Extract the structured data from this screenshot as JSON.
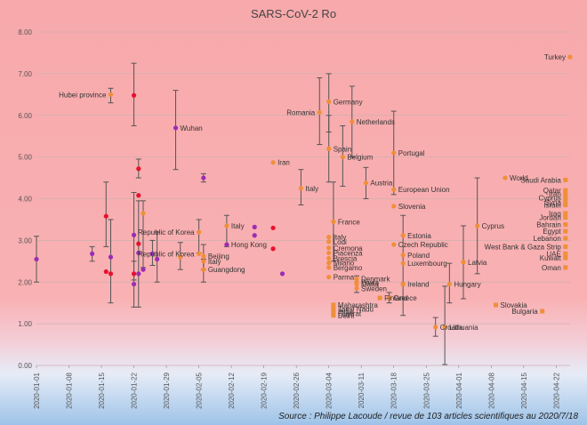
{
  "chart_data": {
    "type": "scatter",
    "title": "SARS-CoV-2 Ro",
    "source": "Source : Philippe Lacoude / revue de 103 articles scientifiques au 2020/7/18",
    "ylim": [
      0,
      8
    ],
    "y_ticks": [
      "0.00",
      "1.00",
      "2.00",
      "3.00",
      "4.00",
      "5.00",
      "6.00",
      "7.00",
      "8.00"
    ],
    "x_range": [
      "2020-01-01",
      "2020-04-25"
    ],
    "x_ticks": [
      "2020-01-01",
      "2020-01-08",
      "2020-01-15",
      "2020-01-22",
      "2020-01-29",
      "2020-02-05",
      "2020-02-12",
      "2020-02-19",
      "2020-02-26",
      "2020-03-04",
      "2020-03-11",
      "2020-03-18",
      "2020-03-25",
      "2020-04-01",
      "2020-04-08",
      "2020-04-15",
      "2020-04-22"
    ],
    "grid": true,
    "background": "gradient red (top) to blue (bottom)",
    "colors": {
      "red": "#e8112d",
      "purple": "#9b2cb5",
      "orange": "#ef8f3a",
      "error_bar": "#555555",
      "grid": "#cfb0b0"
    },
    "points": [
      {
        "date": "2020-01-01",
        "y": 2.55,
        "color": "purple",
        "marker": "circle",
        "lo": 2.0,
        "hi": 3.1
      },
      {
        "date": "2020-01-13",
        "y": 2.68,
        "color": "purple",
        "marker": "circle",
        "lo": 2.5,
        "hi": 2.85
      },
      {
        "date": "2020-01-16",
        "y": 3.58,
        "color": "red",
        "marker": "circle",
        "lo": 2.85,
        "hi": 4.4
      },
      {
        "date": "2020-01-16",
        "y": 2.25,
        "color": "red",
        "marker": "circle"
      },
      {
        "date": "2020-01-17",
        "y": 2.6,
        "color": "purple",
        "marker": "circle",
        "lo": 1.5,
        "hi": 3.5
      },
      {
        "date": "2020-01-17",
        "y": 2.2,
        "color": "red",
        "marker": "circle"
      },
      {
        "date": "2020-01-17",
        "y": 6.5,
        "color": "orange",
        "marker": "circle",
        "label": "Hubei province",
        "lo": 6.3,
        "hi": 6.65
      },
      {
        "date": "2020-01-22",
        "y": 6.48,
        "color": "red",
        "marker": "circle",
        "lo": 5.75,
        "hi": 7.25
      },
      {
        "date": "2020-01-22",
        "y": 3.13,
        "color": "purple",
        "marker": "circle",
        "lo": 2.05,
        "hi": 4.15
      },
      {
        "date": "2020-01-22",
        "y": 2.2,
        "color": "red",
        "marker": "circle"
      },
      {
        "date": "2020-01-22",
        "y": 1.95,
        "color": "purple",
        "marker": "circle",
        "lo": 1.4,
        "hi": 2.5
      },
      {
        "date": "2020-01-23",
        "y": 4.72,
        "color": "red",
        "marker": "circle",
        "lo": 4.5,
        "hi": 4.95
      },
      {
        "date": "2020-01-23",
        "y": 4.08,
        "color": "red",
        "marker": "circle"
      },
      {
        "date": "2020-01-23",
        "y": 2.92,
        "color": "red",
        "marker": "circle"
      },
      {
        "date": "2020-01-23",
        "y": 2.7,
        "color": "purple",
        "marker": "circle",
        "lo": 1.4,
        "hi": 3.95
      },
      {
        "date": "2020-01-23",
        "y": 2.2,
        "color": "purple",
        "marker": "circle"
      },
      {
        "date": "2020-01-24",
        "y": 3.65,
        "color": "orange",
        "marker": "circle",
        "lo": 2.35,
        "hi": 3.95
      },
      {
        "date": "2020-01-24",
        "y": 2.3,
        "color": "purple",
        "marker": "circle"
      },
      {
        "date": "2020-01-26",
        "y": 2.68,
        "color": "purple",
        "marker": "circle",
        "lo": 2.4,
        "hi": 3.0
      },
      {
        "date": "2020-01-27",
        "y": 2.55,
        "color": "purple",
        "marker": "circle",
        "lo": 2.0,
        "hi": 3.2
      },
      {
        "date": "2020-01-31",
        "y": 5.7,
        "color": "purple",
        "marker": "circle",
        "label": "Wuhan",
        "lo": 4.7,
        "hi": 6.6
      },
      {
        "date": "2020-02-01",
        "y": 2.6,
        "color": "orange",
        "marker": "circle",
        "lo": 2.3,
        "hi": 2.95
      },
      {
        "date": "2020-02-06",
        "y": 4.5,
        "color": "purple",
        "marker": "circle",
        "lo": 4.4,
        "hi": 4.6
      },
      {
        "date": "2020-02-05",
        "y": 3.2,
        "color": "orange",
        "marker": "circle",
        "label": "Republic of Korea",
        "lo": 2.7,
        "hi": 3.5
      },
      {
        "date": "2020-02-05",
        "y": 2.68,
        "color": "orange",
        "marker": "circle",
        "label": "Republic of Korea"
      },
      {
        "date": "2020-02-06",
        "y": 2.5,
        "color": "orange",
        "marker": "circle",
        "label": "Italy"
      },
      {
        "date": "2020-02-06",
        "y": 2.62,
        "color": "orange",
        "marker": "circle",
        "label": "Beijing",
        "lo": 2.3,
        "hi": 2.9
      },
      {
        "date": "2020-02-06",
        "y": 2.3,
        "color": "orange",
        "marker": "circle",
        "label": "Guangdong",
        "lo": 2.0,
        "hi": 2.55
      },
      {
        "date": "2020-02-11",
        "y": 3.35,
        "color": "orange",
        "marker": "circle",
        "label": "Italy",
        "lo": 2.85,
        "hi": 3.6
      },
      {
        "date": "2020-02-11",
        "y": 2.9,
        "color": "purple",
        "marker": "circle",
        "label": "Hong Kong"
      },
      {
        "date": "2020-02-17",
        "y": 3.32,
        "color": "purple",
        "marker": "circle"
      },
      {
        "date": "2020-02-17",
        "y": 3.12,
        "color": "purple",
        "marker": "circle"
      },
      {
        "date": "2020-02-21",
        "y": 3.3,
        "color": "red",
        "marker": "circle"
      },
      {
        "date": "2020-02-21",
        "y": 2.8,
        "color": "red",
        "marker": "circle"
      },
      {
        "date": "2020-02-21",
        "y": 4.87,
        "color": "orange",
        "marker": "circle",
        "label": "Iran"
      },
      {
        "date": "2020-02-23",
        "y": 2.2,
        "color": "purple",
        "marker": "circle"
      },
      {
        "date": "2020-02-27",
        "y": 4.25,
        "color": "orange",
        "marker": "circle",
        "label": "Italy",
        "lo": 3.85,
        "hi": 4.7
      },
      {
        "date": "2020-03-02",
        "y": 6.07,
        "color": "orange",
        "marker": "circle",
        "label": "Romania",
        "lo": 5.3,
        "hi": 6.9
      },
      {
        "date": "2020-03-04",
        "y": 6.33,
        "color": "orange",
        "marker": "circle",
        "label": "Germany",
        "lo": 5.6,
        "hi": 7.0
      },
      {
        "date": "2020-03-04",
        "y": 5.2,
        "color": "orange",
        "marker": "circle",
        "label": "Spain",
        "lo": 4.4,
        "hi": 6.0
      },
      {
        "date": "2020-03-05",
        "y": 3.45,
        "color": "orange",
        "marker": "circle",
        "label": "France",
        "lo": 2.5,
        "hi": 4.4
      },
      {
        "date": "2020-03-04",
        "y": 3.08,
        "color": "orange",
        "marker": "circle",
        "label": "Italy"
      },
      {
        "date": "2020-03-04",
        "y": 2.97,
        "color": "orange",
        "marker": "circle",
        "label": "Lodi"
      },
      {
        "date": "2020-03-04",
        "y": 2.82,
        "color": "orange",
        "marker": "circle",
        "label": "Cremona"
      },
      {
        "date": "2020-03-04",
        "y": 2.7,
        "color": "orange",
        "marker": "circle",
        "label": "Piacenza"
      },
      {
        "date": "2020-03-04",
        "y": 2.57,
        "color": "orange",
        "marker": "circle",
        "label": "Brescia"
      },
      {
        "date": "2020-03-04",
        "y": 2.46,
        "color": "orange",
        "marker": "circle",
        "label": "Milano"
      },
      {
        "date": "2020-03-04",
        "y": 2.35,
        "color": "orange",
        "marker": "circle",
        "label": "Bergamo"
      },
      {
        "date": "2020-03-04",
        "y": 2.12,
        "color": "orange",
        "marker": "circle",
        "label": "Parma"
      },
      {
        "date": "2020-03-07",
        "y": 5.0,
        "color": "orange",
        "marker": "circle",
        "label": "Belgium",
        "lo": 4.3,
        "hi": 5.75
      },
      {
        "date": "2020-03-09",
        "y": 5.85,
        "color": "orange",
        "marker": "circle",
        "label": "Netherlands",
        "lo": 5.0,
        "hi": 6.7
      },
      {
        "date": "2020-03-12",
        "y": 4.38,
        "color": "orange",
        "marker": "circle",
        "label": "Austria",
        "lo": 4.0,
        "hi": 4.75
      },
      {
        "date": "2020-03-10",
        "y": 2.0,
        "color": "orange",
        "marker": "circle",
        "label": "Pavia"
      },
      {
        "date": "2020-03-10",
        "y": 1.95,
        "color": "orange",
        "marker": "circle",
        "label": "Malta",
        "lo": 1.75,
        "hi": 2.15
      },
      {
        "date": "2020-03-10",
        "y": 1.85,
        "color": "orange",
        "marker": "circle",
        "label": "Sweden"
      },
      {
        "date": "2020-03-10",
        "y": 2.08,
        "color": "orange",
        "marker": "circle",
        "label": "Denmark"
      },
      {
        "date": "2020-03-05",
        "y": 1.45,
        "color": "orange",
        "marker": "square",
        "label": "Maharashtra"
      },
      {
        "date": "2020-03-05",
        "y": 1.35,
        "color": "orange",
        "marker": "square",
        "label": "Tamil Nadu"
      },
      {
        "date": "2020-03-05",
        "y": 1.3,
        "color": "orange",
        "marker": "square",
        "label": "India"
      },
      {
        "date": "2020-03-05",
        "y": 1.25,
        "color": "orange",
        "marker": "square",
        "label": "Gujarat"
      },
      {
        "date": "2020-03-05",
        "y": 1.2,
        "color": "orange",
        "marker": "square",
        "label": "Delhi"
      },
      {
        "date": "2020-03-15",
        "y": 1.62,
        "color": "orange",
        "marker": "square",
        "label": "Finland"
      },
      {
        "date": "2020-03-17",
        "y": 1.62,
        "color": "orange",
        "marker": "square",
        "label": "Greece",
        "lo": 1.5,
        "hi": 1.75
      },
      {
        "date": "2020-03-18",
        "y": 5.1,
        "color": "orange",
        "marker": "circle",
        "label": "Portugal",
        "lo": 4.1,
        "hi": 6.1
      },
      {
        "date": "2020-03-18",
        "y": 4.22,
        "color": "orange",
        "marker": "circle",
        "label": "European Union"
      },
      {
        "date": "2020-03-18",
        "y": 3.82,
        "color": "orange",
        "marker": "circle",
        "label": "Slovenia"
      },
      {
        "date": "2020-03-20",
        "y": 3.12,
        "color": "orange",
        "marker": "circle",
        "label": "Estonia"
      },
      {
        "date": "2020-03-18",
        "y": 2.9,
        "color": "orange",
        "marker": "circle",
        "label": "Czech Republic"
      },
      {
        "date": "2020-03-20",
        "y": 2.65,
        "color": "orange",
        "marker": "circle",
        "label": "Poland"
      },
      {
        "date": "2020-03-20",
        "y": 2.45,
        "color": "orange",
        "marker": "circle",
        "label": "Luxembourg",
        "lo": 1.2,
        "hi": 3.6
      },
      {
        "date": "2020-03-20",
        "y": 1.95,
        "color": "orange",
        "marker": "square",
        "label": "Ireland"
      },
      {
        "date": "2020-03-27",
        "y": 0.92,
        "color": "orange",
        "marker": "circle",
        "label": "Croatia",
        "lo": 0.7,
        "hi": 1.15
      },
      {
        "date": "2020-03-29",
        "y": 0.92,
        "color": "orange",
        "marker": "circle",
        "label": "Lithuania",
        "lo": 0.02,
        "hi": 1.9
      },
      {
        "date": "2020-03-30",
        "y": 1.95,
        "color": "orange",
        "marker": "circle",
        "label": "Hungary",
        "lo": 1.5,
        "hi": 2.45
      },
      {
        "date": "2020-04-02",
        "y": 2.48,
        "color": "orange",
        "marker": "circle",
        "label": "Latvia",
        "lo": 1.6,
        "hi": 3.35
      },
      {
        "date": "2020-04-05",
        "y": 3.35,
        "color": "orange",
        "marker": "circle",
        "label": "Cyprus",
        "lo": 2.2,
        "hi": 4.5
      },
      {
        "date": "2020-04-11",
        "y": 4.5,
        "color": "orange",
        "marker": "circle",
        "label": "World"
      },
      {
        "date": "2020-04-09",
        "y": 1.45,
        "color": "orange",
        "marker": "square",
        "label": "Slovakia"
      },
      {
        "date": "2020-04-19",
        "y": 1.3,
        "color": "orange",
        "marker": "square",
        "label": "Bulgaria"
      },
      {
        "date": "2020-04-25",
        "y": 7.4,
        "color": "orange",
        "marker": "circle",
        "label": "Turkey"
      },
      {
        "date": "2020-04-24",
        "y": 4.45,
        "color": "orange",
        "marker": "square",
        "label": "Saudi Arabia"
      },
      {
        "date": "2020-04-24",
        "y": 4.2,
        "color": "orange",
        "marker": "square",
        "label": "Qatar"
      },
      {
        "date": "2020-04-24",
        "y": 4.12,
        "color": "orange",
        "marker": "square",
        "label": "Iran"
      },
      {
        "date": "2020-04-24",
        "y": 4.02,
        "color": "orange",
        "marker": "square",
        "label": "Cyprus"
      },
      {
        "date": "2020-04-24",
        "y": 3.92,
        "color": "orange",
        "marker": "square",
        "label": "Syria"
      },
      {
        "date": "2020-04-24",
        "y": 3.85,
        "color": "orange",
        "marker": "square",
        "label": "Israel"
      },
      {
        "date": "2020-04-24",
        "y": 3.65,
        "color": "orange",
        "marker": "square",
        "label": "Iraq"
      },
      {
        "date": "2020-04-24",
        "y": 3.55,
        "color": "orange",
        "marker": "square",
        "label": "Jordan"
      },
      {
        "date": "2020-04-24",
        "y": 3.38,
        "color": "orange",
        "marker": "square",
        "label": "Bahrain"
      },
      {
        "date": "2020-04-24",
        "y": 3.22,
        "color": "orange",
        "marker": "square",
        "label": "Egypt"
      },
      {
        "date": "2020-04-24",
        "y": 3.05,
        "color": "orange",
        "marker": "square",
        "label": "Lebanon"
      },
      {
        "date": "2020-04-24",
        "y": 2.85,
        "color": "orange",
        "marker": "square",
        "label": "West Bank & Gaza Strip"
      },
      {
        "date": "2020-04-24",
        "y": 2.68,
        "color": "orange",
        "marker": "square",
        "label": "UAE"
      },
      {
        "date": "2020-04-24",
        "y": 2.58,
        "color": "orange",
        "marker": "square",
        "label": "Kuwait"
      },
      {
        "date": "2020-04-24",
        "y": 2.35,
        "color": "orange",
        "marker": "square",
        "label": "Oman"
      }
    ]
  }
}
